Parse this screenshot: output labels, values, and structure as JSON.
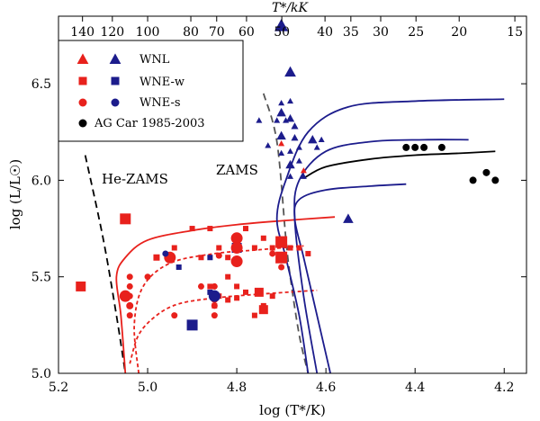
{
  "chart_data": {
    "type": "scatter",
    "xlabel": "log (T*/K)",
    "ylabel": "log (L/L☉)",
    "top_label": "T*/kK",
    "xlim": [
      5.2,
      4.15
    ],
    "ylim": [
      5.0,
      6.85
    ],
    "x_ticks": [
      5.2,
      5.0,
      4.8,
      4.6,
      4.4,
      4.2
    ],
    "x_tick_labels": [
      "5.2",
      "5.0",
      "4.8",
      "4.6",
      "4.4",
      "4.2"
    ],
    "y_ticks": [
      5.0,
      5.5,
      6.0,
      6.5
    ],
    "y_tick_labels": [
      "5.0",
      "5.5",
      "6.0",
      "6.5"
    ],
    "top_ticks_kK": [
      140,
      120,
      100,
      80,
      70,
      60,
      50,
      40,
      35,
      30,
      25,
      20,
      15
    ],
    "top_tick_labels": [
      "140",
      "120",
      "100",
      "80",
      "70",
      "60",
      "50",
      "40",
      "35",
      "30",
      "25",
      "20",
      "15"
    ],
    "legend": {
      "position": "top-left",
      "entries": [
        {
          "label": "WNL",
          "marker": "triangle"
        },
        {
          "label": "WNE-w",
          "marker": "square"
        },
        {
          "label": "WNE-s",
          "marker": "circle"
        },
        {
          "label": "AG Car 1985-2003",
          "marker": "circle-black"
        }
      ]
    },
    "annotations": [
      {
        "text": "He-ZAMS",
        "x": 5.1,
        "y": 6.08
      },
      {
        "text": "ZAMS",
        "x": 4.77,
        "y": 6.12
      }
    ],
    "colors": {
      "red": "#e8211c",
      "blue": "#1c1c8c",
      "black": "#000000",
      "gray": "#555555"
    },
    "series": [
      {
        "name": "WNL (blue triangles)",
        "color": "blue",
        "marker": "triangle",
        "points": [
          [
            4.7,
            6.8,
            13
          ],
          [
            4.68,
            6.56,
            11
          ],
          [
            4.7,
            6.35,
            9
          ],
          [
            4.7,
            6.23,
            9
          ],
          [
            4.68,
            6.32,
            8
          ],
          [
            4.67,
            6.28,
            7
          ],
          [
            4.71,
            6.31,
            6
          ],
          [
            4.69,
            6.31,
            6
          ],
          [
            4.75,
            6.31,
            6
          ],
          [
            4.7,
            6.4,
            6
          ],
          [
            4.68,
            6.41,
            6
          ],
          [
            4.73,
            6.18,
            6
          ],
          [
            4.7,
            6.14,
            6
          ],
          [
            4.68,
            6.15,
            6
          ],
          [
            4.66,
            6.17,
            6
          ],
          [
            4.67,
            6.22,
            7
          ],
          [
            4.68,
            6.08,
            9
          ],
          [
            4.66,
            6.1,
            6
          ],
          [
            4.68,
            6.02,
            6
          ],
          [
            4.65,
            6.02,
            6
          ],
          [
            4.63,
            6.21,
            9
          ],
          [
            4.62,
            6.17,
            6
          ],
          [
            4.61,
            6.21,
            6
          ],
          [
            4.55,
            5.8,
            10
          ]
        ]
      },
      {
        "name": "WNL (red triangles)",
        "color": "red",
        "marker": "triangle",
        "points": [
          [
            4.7,
            6.19,
            6
          ],
          [
            4.65,
            6.05,
            6
          ]
        ]
      },
      {
        "name": "WNE-w (red squares)",
        "color": "red",
        "marker": "square",
        "points": [
          [
            5.15,
            5.45,
            11
          ],
          [
            5.05,
            5.8,
            12
          ],
          [
            4.98,
            5.6,
            7
          ],
          [
            4.94,
            5.65,
            6
          ],
          [
            4.9,
            5.75,
            6
          ],
          [
            4.88,
            5.6,
            6
          ],
          [
            4.86,
            5.75,
            6
          ],
          [
            4.84,
            5.65,
            6
          ],
          [
            4.82,
            5.6,
            6
          ],
          [
            4.8,
            5.7,
            6
          ],
          [
            4.78,
            5.75,
            6
          ],
          [
            4.76,
            5.65,
            6
          ],
          [
            4.74,
            5.7,
            6
          ],
          [
            4.72,
            5.65,
            6
          ],
          [
            4.7,
            5.68,
            13
          ],
          [
            4.7,
            5.6,
            13
          ],
          [
            4.68,
            5.65,
            6
          ],
          [
            4.66,
            5.65,
            6
          ],
          [
            4.64,
            5.62,
            6
          ],
          [
            4.76,
            5.3,
            6
          ],
          [
            4.74,
            5.35,
            6
          ],
          [
            4.72,
            5.4,
            6
          ],
          [
            4.75,
            5.42,
            10
          ],
          [
            4.74,
            5.33,
            10
          ],
          [
            4.8,
            5.45,
            6
          ],
          [
            4.82,
            5.38,
            6
          ],
          [
            4.84,
            5.4,
            6
          ],
          [
            4.8,
            5.39,
            6
          ],
          [
            4.78,
            5.42,
            6
          ],
          [
            4.82,
            5.5,
            6
          ],
          [
            4.86,
            5.45,
            6
          ],
          [
            4.85,
            5.35,
            6
          ]
        ]
      },
      {
        "name": "WNE-w (blue squares)",
        "color": "blue",
        "marker": "square",
        "points": [
          [
            4.9,
            5.25,
            12
          ],
          [
            4.8,
            5.65,
            11
          ],
          [
            4.86,
            5.6,
            6
          ],
          [
            4.86,
            5.42,
            6
          ],
          [
            4.95,
            5.6,
            6
          ],
          [
            4.93,
            5.55,
            6
          ]
        ]
      },
      {
        "name": "WNE-s (red circles)",
        "color": "red",
        "marker": "circle",
        "points": [
          [
            5.04,
            5.5,
            7
          ],
          [
            5.04,
            5.45,
            7
          ],
          [
            5.04,
            5.4,
            7
          ],
          [
            5.04,
            5.35,
            8
          ],
          [
            5.04,
            5.3,
            7
          ],
          [
            5.05,
            5.4,
            13
          ],
          [
            5.0,
            5.5,
            7
          ],
          [
            4.94,
            5.3,
            7
          ],
          [
            4.95,
            5.6,
            13
          ],
          [
            4.88,
            5.45,
            7
          ],
          [
            4.85,
            5.45,
            7
          ],
          [
            4.85,
            5.4,
            7
          ],
          [
            4.85,
            5.38,
            7
          ],
          [
            4.85,
            5.35,
            7
          ],
          [
            4.85,
            5.3,
            7
          ],
          [
            4.8,
            5.7,
            13
          ],
          [
            4.8,
            5.65,
            13
          ],
          [
            4.8,
            5.58,
            13
          ],
          [
            4.84,
            5.61,
            7
          ],
          [
            4.72,
            5.62,
            7
          ],
          [
            4.7,
            5.55,
            7
          ]
        ]
      },
      {
        "name": "WNE-s (blue circles)",
        "color": "blue",
        "marker": "circle",
        "points": [
          [
            4.85,
            5.4,
            13
          ],
          [
            4.96,
            5.62,
            7
          ]
        ]
      },
      {
        "name": "AG Car 1985-2003",
        "color": "black",
        "marker": "circle",
        "points": [
          [
            4.42,
            6.17,
            8
          ],
          [
            4.4,
            6.17,
            8
          ],
          [
            4.38,
            6.17,
            8
          ],
          [
            4.34,
            6.17,
            8
          ],
          [
            4.27,
            6.0,
            8
          ],
          [
            4.24,
            6.04,
            8
          ],
          [
            4.22,
            6.0,
            8
          ]
        ]
      }
    ],
    "curves": [
      {
        "name": "He-ZAMS",
        "color": "black",
        "dash": "long",
        "points": [
          [
            5.14,
            6.13
          ],
          [
            5.1,
            5.7
          ],
          [
            5.07,
            5.3
          ],
          [
            5.05,
            5.0
          ]
        ]
      },
      {
        "name": "ZAMS",
        "color": "gray",
        "dash": "long",
        "points": [
          [
            4.74,
            6.45
          ],
          [
            4.71,
            6.2
          ],
          [
            4.69,
            5.7
          ],
          [
            4.68,
            5.5
          ],
          [
            4.66,
            5.2
          ],
          [
            4.64,
            5.0
          ]
        ]
      },
      {
        "name": "track red solid",
        "color": "red",
        "dash": "none",
        "points": [
          [
            5.05,
            5.0
          ],
          [
            5.06,
            5.3
          ],
          [
            5.07,
            5.5
          ],
          [
            5.05,
            5.6
          ],
          [
            5.0,
            5.69
          ],
          [
            4.9,
            5.74
          ],
          [
            4.8,
            5.77
          ],
          [
            4.7,
            5.79
          ],
          [
            4.58,
            5.81
          ]
        ]
      },
      {
        "name": "track red dashed upper",
        "color": "red",
        "dash": "short",
        "points": [
          [
            5.02,
            5.0
          ],
          [
            5.03,
            5.25
          ],
          [
            5.01,
            5.45
          ],
          [
            4.95,
            5.57
          ],
          [
            4.85,
            5.62
          ],
          [
            4.75,
            5.64
          ],
          [
            4.65,
            5.66
          ]
        ]
      },
      {
        "name": "track red dashed lower",
        "color": "red",
        "dash": "short",
        "points": [
          [
            5.04,
            5.05
          ],
          [
            5.02,
            5.2
          ],
          [
            4.98,
            5.3
          ],
          [
            4.93,
            5.36
          ],
          [
            4.85,
            5.39
          ],
          [
            4.75,
            5.41
          ],
          [
            4.62,
            5.43
          ]
        ]
      },
      {
        "name": "track blue 1",
        "color": "blue",
        "dash": "none",
        "points": [
          [
            4.64,
            5.0
          ],
          [
            4.66,
            5.3
          ],
          [
            4.69,
            5.6
          ],
          [
            4.71,
            5.8
          ],
          [
            4.69,
            6.0
          ],
          [
            4.64,
            6.25
          ],
          [
            4.55,
            6.38
          ],
          [
            4.4,
            6.41
          ],
          [
            4.2,
            6.42
          ]
        ]
      },
      {
        "name": "track blue 2",
        "color": "blue",
        "dash": "none",
        "points": [
          [
            4.62,
            5.0
          ],
          [
            4.65,
            5.4
          ],
          [
            4.67,
            5.8
          ],
          [
            4.66,
            6.0
          ],
          [
            4.6,
            6.15
          ],
          [
            4.5,
            6.2
          ],
          [
            4.38,
            6.21
          ],
          [
            4.28,
            6.21
          ]
        ]
      },
      {
        "name": "track black",
        "color": "black",
        "dash": "none",
        "points": [
          [
            4.65,
            6.01
          ],
          [
            4.6,
            6.07
          ],
          [
            4.5,
            6.11
          ],
          [
            4.4,
            6.13
          ],
          [
            4.3,
            6.14
          ],
          [
            4.22,
            6.15
          ]
        ]
      },
      {
        "name": "track blue 3",
        "color": "blue",
        "dash": "none",
        "points": [
          [
            4.59,
            5.0
          ],
          [
            4.62,
            5.3
          ],
          [
            4.65,
            5.6
          ],
          [
            4.67,
            5.8
          ],
          [
            4.66,
            5.9
          ],
          [
            4.6,
            5.95
          ],
          [
            4.5,
            5.97
          ],
          [
            4.42,
            5.98
          ]
        ]
      }
    ]
  }
}
